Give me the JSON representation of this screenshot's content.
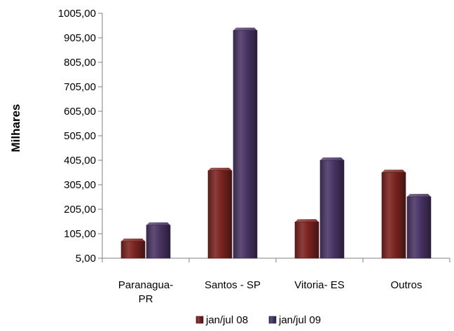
{
  "chart_data": {
    "type": "bar",
    "title": "",
    "xlabel": "",
    "ylabel": "Milhares",
    "categories": [
      [
        "Paranagua-",
        "PR"
      ],
      [
        "Santos - SP"
      ],
      [
        "Vitoria- ES"
      ],
      [
        "Outros"
      ]
    ],
    "series": [
      {
        "name": "jan/jul 08",
        "values": [
          74,
          363,
          153,
          355
        ],
        "color": "#7b2420"
      },
      {
        "name": "jan/jul 09",
        "values": [
          140,
          935,
          405,
          256
        ],
        "color": "#4a3565"
      }
    ],
    "ylim": [
      5,
      1005
    ],
    "yticks": [
      "5,00",
      "105,00",
      "205,00",
      "305,00",
      "405,00",
      "505,00",
      "605,00",
      "705,00",
      "805,00",
      "905,00",
      "1005,00"
    ],
    "grid": false,
    "legend_position": "bottom"
  }
}
